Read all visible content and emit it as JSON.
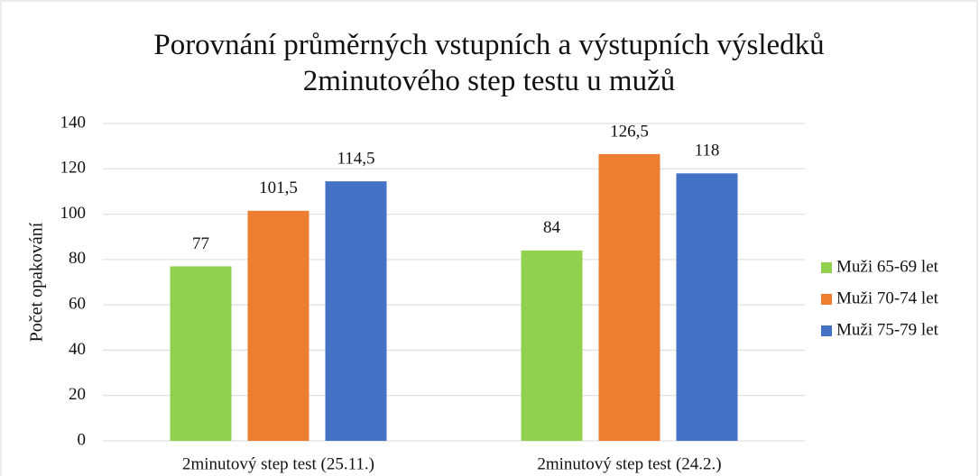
{
  "chart_data": {
    "type": "bar",
    "title": "Porovnání průměrných vstupních a výstupních výsledků 2minutového step testu u mužů",
    "y_label": "Počet opakování",
    "categories": [
      "2minutový step test (25.11.)",
      "2minutový step test (24.2.)"
    ],
    "series": [
      {
        "name": "Muži 65-69 let",
        "color": "#92d050",
        "values": [
          77,
          84
        ],
        "value_labels": [
          "77",
          "84"
        ]
      },
      {
        "name": "Muži 70-74 let",
        "color": "#ed7d31",
        "values": [
          101.5,
          126.5
        ],
        "value_labels": [
          "101,5",
          "126,5"
        ]
      },
      {
        "name": "Muži 75-79 let",
        "color": "#4472c4",
        "values": [
          114.5,
          118
        ],
        "value_labels": [
          "114,5",
          "118"
        ]
      }
    ],
    "ylim": [
      0,
      140
    ],
    "yticks": [
      0,
      20,
      40,
      60,
      80,
      100,
      120,
      140
    ],
    "grid": true,
    "legend": "right"
  }
}
